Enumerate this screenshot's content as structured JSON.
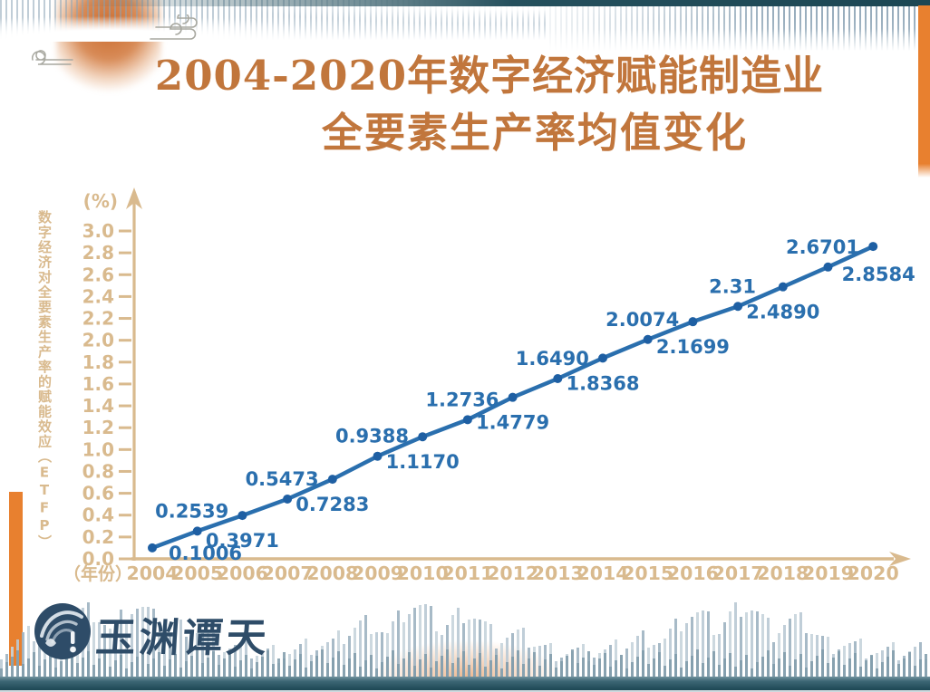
{
  "title": {
    "line1": "2004-2020年数字经济赋能制造业",
    "line2": "全要素生产率均值变化"
  },
  "chart_data": {
    "type": "line",
    "x": [
      2004,
      2005,
      2006,
      2007,
      2008,
      2009,
      2010,
      2011,
      2012,
      2013,
      2014,
      2015,
      2016,
      2017,
      2018,
      2019,
      2020
    ],
    "values": [
      0.1006,
      0.2539,
      0.3971,
      0.5473,
      0.7283,
      0.9388,
      1.117,
      1.2736,
      1.4779,
      1.649,
      1.8368,
      2.0074,
      2.1699,
      2.31,
      2.489,
      2.6701,
      2.8584
    ],
    "point_labels": [
      "0.1006",
      "0.2539",
      "0.3971",
      "0.5473",
      "0.7283",
      "0.9388",
      "1.1170",
      "1.2736",
      "1.4779",
      "1.6490",
      "1.8368",
      "2.0074",
      "2.1699",
      "2.31",
      "2.4890",
      "2.6701",
      "2.8584"
    ],
    "title": "2004-2020年数字经济赋能制造业全要素生产率均值变化",
    "ylabel": "数字经济对全要素生产率的赋能效应（ETFP）",
    "y_unit": "(%)",
    "x_unit": "（年份）",
    "xlabel": "年份",
    "ylim": [
      0,
      3.0
    ],
    "ytick_step": 0.2,
    "yticks": [
      "3.0",
      "2.8",
      "2.6",
      "2.4",
      "2.2",
      "2.0",
      "1.8",
      "1.6",
      "1.4",
      "1.2",
      "1.0",
      "0.8",
      "0.6",
      "0.4",
      "0.2",
      "0.0"
    ],
    "grid": false,
    "legend": "none"
  },
  "footer": {
    "logo_text": "玉渊谭天"
  },
  "colors": {
    "title_orange": "#c1763c",
    "accent_orange": "#e8802f",
    "axis_tan": "#d9ba8e",
    "line_blue": "#2a6fae",
    "marker_blue": "#1e5fa3",
    "label_blue": "#2a6fae",
    "logo_navy": "#2e4c68",
    "strip_teal": "#1d4754"
  }
}
